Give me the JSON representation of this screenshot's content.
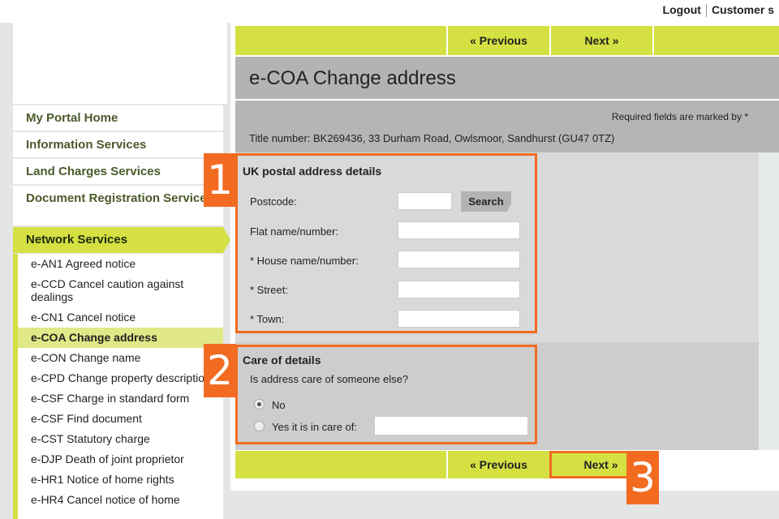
{
  "top_links": {
    "logout": "Logout",
    "customer": "Customer s"
  },
  "sidebar": {
    "items": [
      {
        "label": "My Portal Home"
      },
      {
        "label": "Information Services"
      },
      {
        "label": "Land Charges Services"
      },
      {
        "label": "Document Registration Service"
      },
      {
        "label": "Network Services"
      }
    ],
    "sub_items": [
      "e-AN1 Agreed notice",
      "e-CCD Cancel caution against dealings",
      "e-CN1 Cancel notice",
      "e-COA Change address",
      "e-CON Change name",
      "e-CPD Change property description",
      "e-CSF Charge in standard form",
      "e-CSF Find document",
      "e-CST Statutory charge",
      "e-DJP Death of joint proprietor",
      "e-HR1 Notice of home rights",
      "e-HR4 Cancel notice of home"
    ],
    "selected": "e-COA Change address"
  },
  "nav": {
    "previous": "« Previous",
    "next": "Next »"
  },
  "page_title": "e-COA Change address",
  "required_note": "Required fields are marked by *",
  "title_number": "Title number: BK269436, 33 Durham Road, Owlsmoor, Sandhurst (GU47 0TZ)",
  "address": {
    "heading": "UK postal address details",
    "postcode": "Postcode:",
    "search": "Search",
    "flat": "Flat name/number:",
    "house": "* House name/number:",
    "street": "* Street:",
    "town": "* Town:"
  },
  "care": {
    "heading": "Care of details",
    "question": "Is address care of someone else?",
    "no": "No",
    "yes": "Yes it is in care of:",
    "selected": "No"
  },
  "badges": [
    "1",
    "2",
    "3"
  ],
  "colors": {
    "accent": "#d5e042",
    "highlight": "#f26b21"
  }
}
